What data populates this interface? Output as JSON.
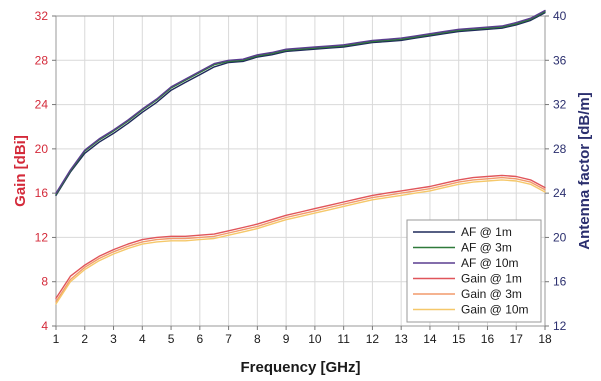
{
  "chart_data": {
    "type": "line",
    "xlabel": "Frequency [GHz]",
    "ylabel_left": "Gain [dBi]",
    "ylabel_right": "Antenna factor [dB/m]",
    "xlim": [
      1,
      18
    ],
    "ylim_left": [
      4,
      32
    ],
    "ylim_right": [
      12,
      40
    ],
    "x_ticks": [
      "1",
      "2",
      "3",
      "4",
      "5",
      "6",
      "7",
      "8",
      "9",
      "10",
      "11",
      "12",
      "13",
      "14",
      "15",
      "16",
      "17",
      "18"
    ],
    "y_ticks_left": [
      "4",
      "8",
      "12",
      "16",
      "20",
      "24",
      "28",
      "32"
    ],
    "y_ticks_right": [
      "12",
      "16",
      "20",
      "24",
      "28",
      "32",
      "36",
      "40"
    ],
    "grid": true,
    "legend_position": "bottom-right",
    "colors": {
      "left_axis": "#d42a3a",
      "right_axis": "#2b2f6e",
      "grid": "#d9d9d9"
    },
    "x": [
      1,
      1.5,
      2,
      2.5,
      3,
      3.5,
      4,
      4.5,
      5,
      5.5,
      6,
      6.5,
      7,
      7.5,
      8,
      8.5,
      9,
      9.5,
      10,
      10.5,
      11,
      11.5,
      12,
      12.5,
      13,
      13.5,
      14,
      14.5,
      15,
      15.5,
      16,
      16.5,
      17,
      17.5,
      18
    ],
    "series": [
      {
        "name": "AF @ 1m",
        "axis": "right",
        "color": "#1f2a5a",
        "values": [
          23.8,
          25.9,
          27.6,
          28.6,
          29.4,
          30.3,
          31.3,
          32.2,
          33.3,
          34.0,
          34.7,
          35.4,
          35.8,
          35.9,
          36.3,
          36.5,
          36.8,
          36.9,
          37.0,
          37.1,
          37.2,
          37.4,
          37.6,
          37.7,
          37.8,
          38.0,
          38.2,
          38.4,
          38.6,
          38.7,
          38.8,
          38.9,
          39.2,
          39.6,
          40.3
        ]
      },
      {
        "name": "AF @ 3m",
        "axis": "right",
        "color": "#2f7a3a",
        "values": [
          23.9,
          26.0,
          27.8,
          28.8,
          29.6,
          30.5,
          31.5,
          32.4,
          33.5,
          34.2,
          34.9,
          35.6,
          35.9,
          36.0,
          36.4,
          36.6,
          36.9,
          37.0,
          37.1,
          37.2,
          37.3,
          37.5,
          37.7,
          37.8,
          37.9,
          38.1,
          38.3,
          38.5,
          38.7,
          38.8,
          38.9,
          39.0,
          39.3,
          39.7,
          40.4
        ]
      },
      {
        "name": "AF @ 10m",
        "axis": "right",
        "color": "#5a3d8f",
        "values": [
          24.0,
          26.1,
          27.9,
          28.9,
          29.7,
          30.6,
          31.6,
          32.5,
          33.6,
          34.3,
          35.0,
          35.7,
          36.0,
          36.1,
          36.5,
          36.7,
          37.0,
          37.1,
          37.2,
          37.3,
          37.4,
          37.6,
          37.8,
          37.9,
          38.0,
          38.2,
          38.4,
          38.6,
          38.8,
          38.9,
          39.0,
          39.1,
          39.4,
          39.8,
          40.5
        ]
      },
      {
        "name": "Gain @ 1m",
        "axis": "left",
        "color": "#e0555a",
        "values": [
          6.5,
          8.5,
          9.5,
          10.3,
          10.9,
          11.4,
          11.8,
          12.0,
          12.1,
          12.1,
          12.2,
          12.3,
          12.6,
          12.9,
          13.2,
          13.6,
          14.0,
          14.3,
          14.6,
          14.9,
          15.2,
          15.5,
          15.8,
          16.0,
          16.2,
          16.4,
          16.6,
          16.9,
          17.2,
          17.4,
          17.5,
          17.6,
          17.5,
          17.2,
          16.5
        ]
      },
      {
        "name": "Gain @ 3m",
        "axis": "left",
        "color": "#f29a6b",
        "values": [
          6.2,
          8.2,
          9.3,
          10.1,
          10.7,
          11.2,
          11.6,
          11.8,
          11.9,
          11.9,
          12.0,
          12.1,
          12.4,
          12.7,
          13.0,
          13.4,
          13.8,
          14.1,
          14.4,
          14.7,
          15.0,
          15.3,
          15.6,
          15.8,
          16.0,
          16.2,
          16.4,
          16.7,
          17.0,
          17.2,
          17.3,
          17.4,
          17.3,
          17.0,
          16.3
        ]
      },
      {
        "name": "Gain @ 10m",
        "axis": "left",
        "color": "#f5c86a",
        "values": [
          6.0,
          8.0,
          9.1,
          9.9,
          10.5,
          11.0,
          11.4,
          11.6,
          11.7,
          11.7,
          11.8,
          11.9,
          12.2,
          12.5,
          12.8,
          13.2,
          13.6,
          13.9,
          14.2,
          14.5,
          14.8,
          15.1,
          15.4,
          15.6,
          15.8,
          16.0,
          16.2,
          16.5,
          16.8,
          17.0,
          17.1,
          17.2,
          17.1,
          16.8,
          16.1
        ]
      }
    ]
  }
}
